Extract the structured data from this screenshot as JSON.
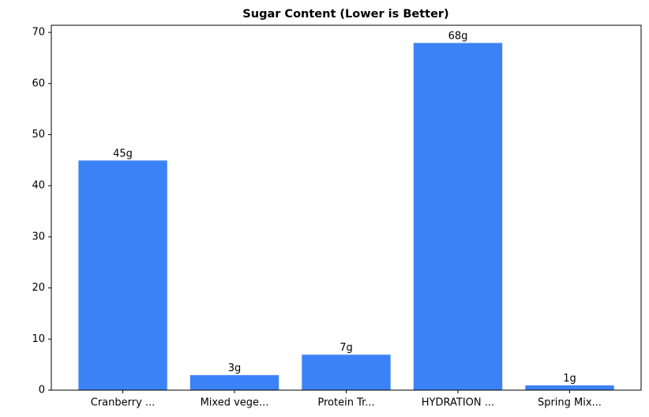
{
  "chart_data": {
    "type": "bar",
    "title": "Sugar Content (Lower is Better)",
    "categories": [
      "Cranberry ...",
      "Mixed vege...",
      "Protein Tr...",
      "HYDRATION ...",
      "Spring Mix..."
    ],
    "values": [
      45,
      3,
      7,
      68,
      1
    ],
    "value_labels": [
      "45g",
      "3g",
      "7g",
      "68g",
      "1g"
    ],
    "color": "#3b82f6",
    "ylim": [
      0,
      71.4
    ],
    "yticks": [
      0,
      10,
      20,
      30,
      40,
      50,
      60,
      70
    ],
    "grid": false
  }
}
